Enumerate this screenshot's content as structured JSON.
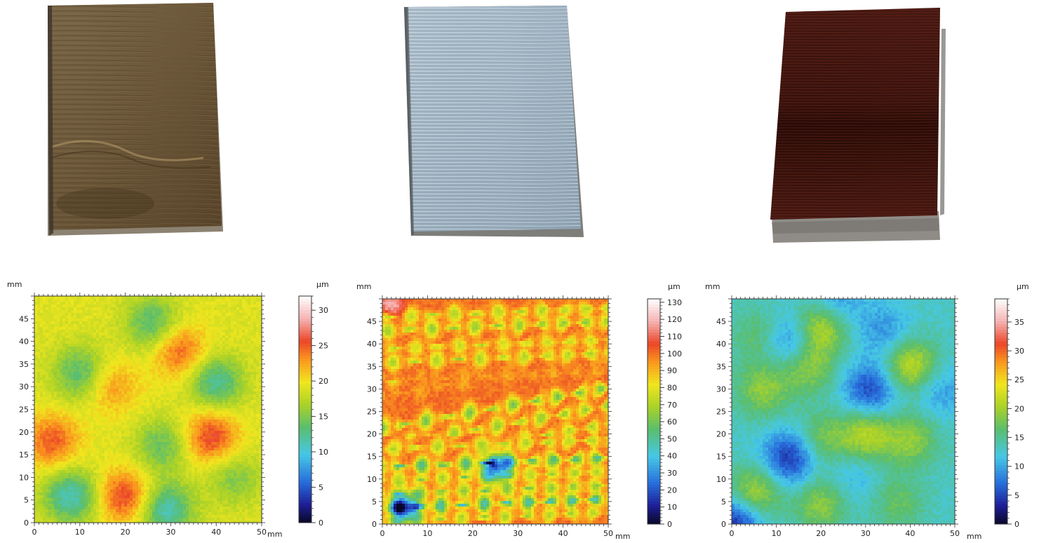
{
  "chart_data": [
    {
      "type": "heatmap",
      "title": "",
      "xlabel": "mm",
      "ylabel": "mm",
      "x_unit": "mm",
      "y_unit": "mm",
      "xlim": [
        0,
        50
      ],
      "ylim": [
        0,
        50
      ],
      "xticks": [
        0,
        10,
        20,
        30,
        40,
        50
      ],
      "yticks": [
        0,
        5,
        10,
        15,
        20,
        25,
        30,
        35,
        40,
        45
      ],
      "colorbar": {
        "unit": "µm",
        "range": [
          0,
          32
        ],
        "ticks": [
          0,
          5,
          10,
          15,
          20,
          25,
          30
        ]
      },
      "base_value": 19,
      "features": [
        {
          "x": 26,
          "y": 44,
          "value": 13
        },
        {
          "x": 10,
          "y": 33,
          "value": 13
        },
        {
          "x": 40,
          "y": 31,
          "value": 12
        },
        {
          "x": 28,
          "y": 17,
          "value": 14
        },
        {
          "x": 8,
          "y": 6,
          "value": 11
        },
        {
          "x": 29,
          "y": 3,
          "value": 11
        },
        {
          "x": 20,
          "y": 6,
          "value": 26
        },
        {
          "x": 39,
          "y": 19,
          "value": 26
        },
        {
          "x": 4,
          "y": 18,
          "value": 25
        },
        {
          "x": 32,
          "y": 38,
          "value": 25
        },
        {
          "x": 17,
          "y": 30,
          "value": 23
        },
        {
          "x": 44,
          "y": 10,
          "value": 15
        }
      ]
    },
    {
      "type": "heatmap",
      "title": "",
      "xlabel": "mm",
      "ylabel": "mm",
      "x_unit": "mm",
      "y_unit": "mm",
      "xlim": [
        0,
        50
      ],
      "ylim": [
        0,
        50
      ],
      "xticks": [
        0,
        10,
        20,
        30,
        40,
        50
      ],
      "yticks": [
        0,
        5,
        10,
        15,
        20,
        25,
        30,
        35,
        40,
        45
      ],
      "colorbar": {
        "unit": "µm",
        "range": [
          0,
          132
        ],
        "ticks": [
          0,
          10,
          20,
          30,
          40,
          50,
          60,
          70,
          80,
          90,
          100,
          110,
          120,
          130
        ]
      },
      "base_value": 100,
      "bands": [
        {
          "y": 47,
          "value": 70
        },
        {
          "y": 44,
          "value": 65
        },
        {
          "y": 40,
          "value": 75
        },
        {
          "y": 37,
          "value": 70
        },
        {
          "y": 33,
          "value": 92
        },
        {
          "y": 26,
          "value": 60
        },
        {
          "y": 22,
          "value": 65
        },
        {
          "y": 18,
          "value": 70
        },
        {
          "y": 14,
          "value": 50
        },
        {
          "y": 11,
          "value": 70
        },
        {
          "y": 8,
          "value": 65
        },
        {
          "y": 5,
          "value": 45
        },
        {
          "y": 2,
          "value": 70
        }
      ],
      "features": [
        {
          "x": 2,
          "y": 49,
          "value": 118
        },
        {
          "x": 25,
          "y": 13,
          "value": 30
        },
        {
          "x": 5,
          "y": 4,
          "value": 25
        }
      ]
    },
    {
      "type": "heatmap",
      "title": "",
      "xlabel": "mm",
      "ylabel": "mm",
      "x_unit": "mm",
      "y_unit": "mm",
      "xlim": [
        0,
        50
      ],
      "ylim": [
        0,
        50
      ],
      "xticks": [
        0,
        10,
        20,
        30,
        40,
        50
      ],
      "yticks": [
        0,
        5,
        10,
        15,
        20,
        25,
        30,
        35,
        40,
        45
      ],
      "colorbar": {
        "unit": "µm",
        "range": [
          0,
          39
        ],
        "ticks": [
          0,
          5,
          10,
          15,
          20,
          25,
          30,
          35
        ]
      },
      "base_value": 13,
      "features": [
        {
          "x": 13,
          "y": 15,
          "value": 4
        },
        {
          "x": 31,
          "y": 30,
          "value": 5
        },
        {
          "x": 13,
          "y": 41,
          "value": 7
        },
        {
          "x": 1,
          "y": 1,
          "value": 3
        },
        {
          "x": 23,
          "y": 49,
          "value": 8
        },
        {
          "x": 34,
          "y": 43,
          "value": 9
        },
        {
          "x": 20,
          "y": 44,
          "value": 22
        },
        {
          "x": 40,
          "y": 35,
          "value": 22
        },
        {
          "x": 30,
          "y": 20,
          "value": 21
        },
        {
          "x": 5,
          "y": 7,
          "value": 21
        },
        {
          "x": 17,
          "y": 35,
          "value": 19
        },
        {
          "x": 7,
          "y": 30,
          "value": 19
        },
        {
          "x": 20,
          "y": 5,
          "value": 19
        },
        {
          "x": 40,
          "y": 19,
          "value": 19
        },
        {
          "x": 37,
          "y": 5,
          "value": 17
        },
        {
          "x": 20,
          "y": 19,
          "value": 18
        },
        {
          "x": 6,
          "y": 42,
          "value": 17
        },
        {
          "x": 46,
          "y": 30,
          "value": 9
        },
        {
          "x": 27,
          "y": 11,
          "value": 10
        }
      ]
    }
  ]
}
